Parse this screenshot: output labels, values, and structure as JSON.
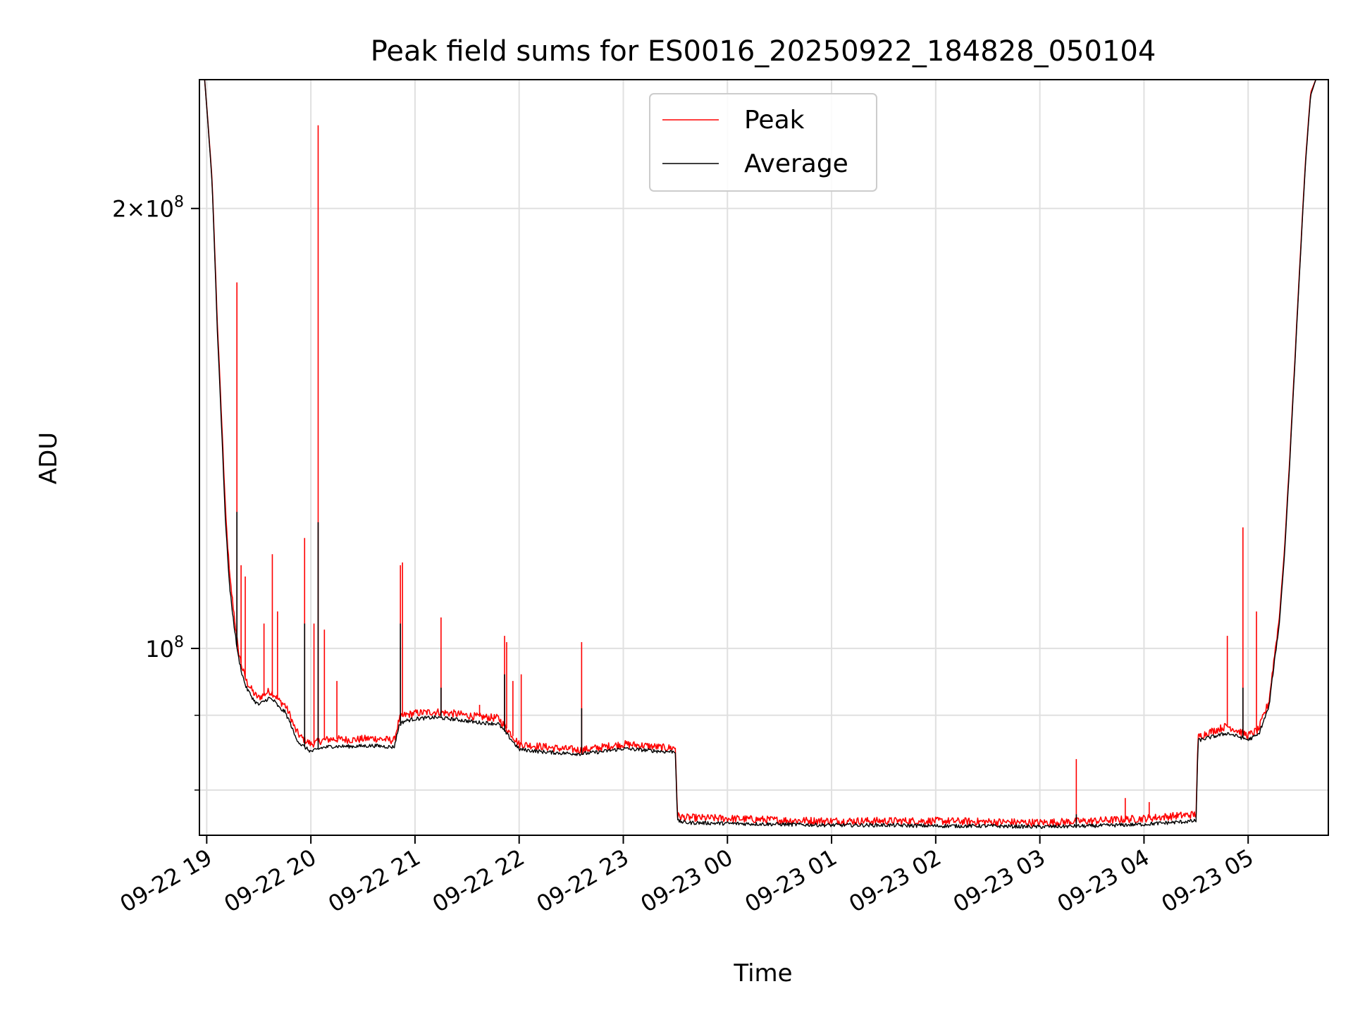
{
  "chart_data": {
    "type": "line",
    "title": "Peak field sums for ES0016_20250922_184828_050104",
    "xlabel": "Time",
    "ylabel": "ADU",
    "yscale": "log",
    "grid": true,
    "legend_position": "top-center",
    "xlim_hours": [
      -0.07,
      10.77
    ],
    "ylim": [
      74500000,
      245000000
    ],
    "x_units": "hours since 09-22 19:00",
    "x_ticks": [
      {
        "value": 0,
        "label": "09-22 19"
      },
      {
        "value": 1,
        "label": "09-22 20"
      },
      {
        "value": 2,
        "label": "09-22 21"
      },
      {
        "value": 3,
        "label": "09-22 22"
      },
      {
        "value": 4,
        "label": "09-22 23"
      },
      {
        "value": 5,
        "label": "09-23 00"
      },
      {
        "value": 6,
        "label": "09-23 01"
      },
      {
        "value": 7,
        "label": "09-23 02"
      },
      {
        "value": 8,
        "label": "09-23 03"
      },
      {
        "value": 9,
        "label": "09-23 04"
      },
      {
        "value": 10,
        "label": "09-23 05"
      }
    ],
    "y_ticks_major": [
      {
        "value": 100000000,
        "base": "10",
        "exp": "8",
        "coef": ""
      },
      {
        "value": 200000000,
        "base": "10",
        "exp": "8",
        "coef": "2"
      }
    ],
    "y_ticks_minor": [
      80000000,
      90000000
    ],
    "legend": [
      {
        "label": "Peak",
        "color": "#ff0000"
      },
      {
        "label": "Average",
        "color": "#000000"
      }
    ],
    "series": [
      {
        "name": "Peak",
        "color": "#ff0000",
        "x": [
          -0.02,
          0.05,
          0.1,
          0.14,
          0.18,
          0.22,
          0.26,
          0.3,
          0.34,
          0.38,
          0.42,
          0.46,
          0.5,
          0.55,
          0.6,
          0.65,
          0.7,
          0.75,
          0.8,
          0.85,
          0.9,
          0.95,
          1.0,
          1.05,
          1.1,
          1.2,
          1.4,
          1.6,
          1.8,
          1.85,
          1.9,
          2.0,
          2.2,
          2.4,
          2.6,
          2.8,
          3.0,
          3.2,
          3.4,
          3.6,
          3.8,
          4.0,
          4.2,
          4.4,
          4.5,
          4.52,
          4.6,
          5.0,
          5.5,
          6.0,
          6.5,
          7.0,
          7.5,
          8.0,
          8.5,
          9.0,
          9.5,
          9.52,
          9.6,
          9.8,
          10.0,
          10.1,
          10.2,
          10.3,
          10.35,
          10.4,
          10.45,
          10.5,
          10.55,
          10.6,
          10.65
        ],
        "y": [
          245000000,
          210000000,
          168000000,
          145000000,
          124000000,
          112000000,
          106000000,
          100000000,
          97000000,
          95000000,
          94000000,
          93000000,
          92500000,
          93000000,
          93500000,
          93000000,
          92000000,
          91500000,
          90000000,
          88000000,
          87000000,
          86500000,
          86000000,
          86200000,
          86500000,
          86700000,
          86600000,
          86800000,
          86500000,
          89500000,
          90000000,
          90300000,
          90500000,
          90200000,
          89800000,
          89600000,
          86000000,
          85700000,
          85400000,
          85200000,
          85600000,
          86000000,
          85800000,
          85500000,
          85500000,
          76800000,
          76600000,
          76500000,
          76300000,
          76200000,
          76200000,
          76200000,
          76100000,
          76000000,
          76200000,
          76500000,
          77000000,
          87000000,
          87500000,
          88500000,
          87200000,
          88000000,
          92000000,
          105000000,
          117000000,
          135000000,
          158000000,
          185000000,
          215000000,
          240000000,
          245000000
        ],
        "spikes": [
          {
            "x": 0.29,
            "y": 178000000
          },
          {
            "x": 0.33,
            "y": 114000000
          },
          {
            "x": 0.37,
            "y": 112000000
          },
          {
            "x": 0.55,
            "y": 104000000
          },
          {
            "x": 0.63,
            "y": 116000000
          },
          {
            "x": 0.68,
            "y": 106000000
          },
          {
            "x": 0.94,
            "y": 119000000
          },
          {
            "x": 1.03,
            "y": 104000000
          },
          {
            "x": 1.07,
            "y": 228000000
          },
          {
            "x": 1.13,
            "y": 103000000
          },
          {
            "x": 1.25,
            "y": 95000000
          },
          {
            "x": 1.86,
            "y": 114000000
          },
          {
            "x": 1.88,
            "y": 114500000
          },
          {
            "x": 2.25,
            "y": 105000000
          },
          {
            "x": 2.62,
            "y": 91500000
          },
          {
            "x": 2.86,
            "y": 102000000
          },
          {
            "x": 2.88,
            "y": 101000000
          },
          {
            "x": 2.94,
            "y": 95000000
          },
          {
            "x": 3.02,
            "y": 96000000
          },
          {
            "x": 3.6,
            "y": 101000000
          },
          {
            "x": 8.35,
            "y": 84000000
          },
          {
            "x": 8.82,
            "y": 79000000
          },
          {
            "x": 9.05,
            "y": 78500000
          },
          {
            "x": 9.8,
            "y": 102000000
          },
          {
            "x": 9.95,
            "y": 121000000
          },
          {
            "x": 10.08,
            "y": 106000000
          }
        ]
      },
      {
        "name": "Average",
        "color": "#000000",
        "x": [
          -0.02,
          0.05,
          0.1,
          0.14,
          0.18,
          0.22,
          0.26,
          0.3,
          0.34,
          0.38,
          0.42,
          0.46,
          0.5,
          0.55,
          0.6,
          0.65,
          0.7,
          0.75,
          0.8,
          0.85,
          0.9,
          0.95,
          1.0,
          1.05,
          1.1,
          1.2,
          1.4,
          1.6,
          1.8,
          1.85,
          1.9,
          2.0,
          2.2,
          2.4,
          2.6,
          2.8,
          3.0,
          3.2,
          3.4,
          3.6,
          3.8,
          4.0,
          4.2,
          4.4,
          4.5,
          4.52,
          4.6,
          5.0,
          5.5,
          6.0,
          6.5,
          7.0,
          7.5,
          8.0,
          8.5,
          9.0,
          9.5,
          9.52,
          9.6,
          9.8,
          10.0,
          10.1,
          10.2,
          10.3,
          10.35,
          10.4,
          10.45,
          10.5,
          10.55,
          10.6,
          10.65
        ],
        "y": [
          245000000,
          209000000,
          166000000,
          143000000,
          122000000,
          110000000,
          104000000,
          99000000,
          96000000,
          94000000,
          93000000,
          92000000,
          91500000,
          92000000,
          92500000,
          92000000,
          91000000,
          90500000,
          89000000,
          87000000,
          86000000,
          85500000,
          85000000,
          85200000,
          85500000,
          85700000,
          85700000,
          85800000,
          85600000,
          88700000,
          89200000,
          89500000,
          89700000,
          89400000,
          89000000,
          88800000,
          85300000,
          85000000,
          84800000,
          84700000,
          85000000,
          85400000,
          85200000,
          85000000,
          85000000,
          76200000,
          76000000,
          75900000,
          75800000,
          75700000,
          75700000,
          75600000,
          75600000,
          75500000,
          75600000,
          75800000,
          76200000,
          86500000,
          86800000,
          87500000,
          86600000,
          87300000,
          91200000,
          104000000,
          116000000,
          134000000,
          157000000,
          184000000,
          214000000,
          239000000,
          245000000
        ],
        "spikes": [
          {
            "x": 0.29,
            "y": 124000000
          },
          {
            "x": 0.94,
            "y": 104000000
          },
          {
            "x": 1.07,
            "y": 122000000
          },
          {
            "x": 1.86,
            "y": 104000000
          },
          {
            "x": 2.25,
            "y": 94000000
          },
          {
            "x": 2.86,
            "y": 96000000
          },
          {
            "x": 3.6,
            "y": 91000000
          },
          {
            "x": 8.35,
            "y": 77000000
          },
          {
            "x": 9.95,
            "y": 94000000
          }
        ]
      }
    ]
  }
}
